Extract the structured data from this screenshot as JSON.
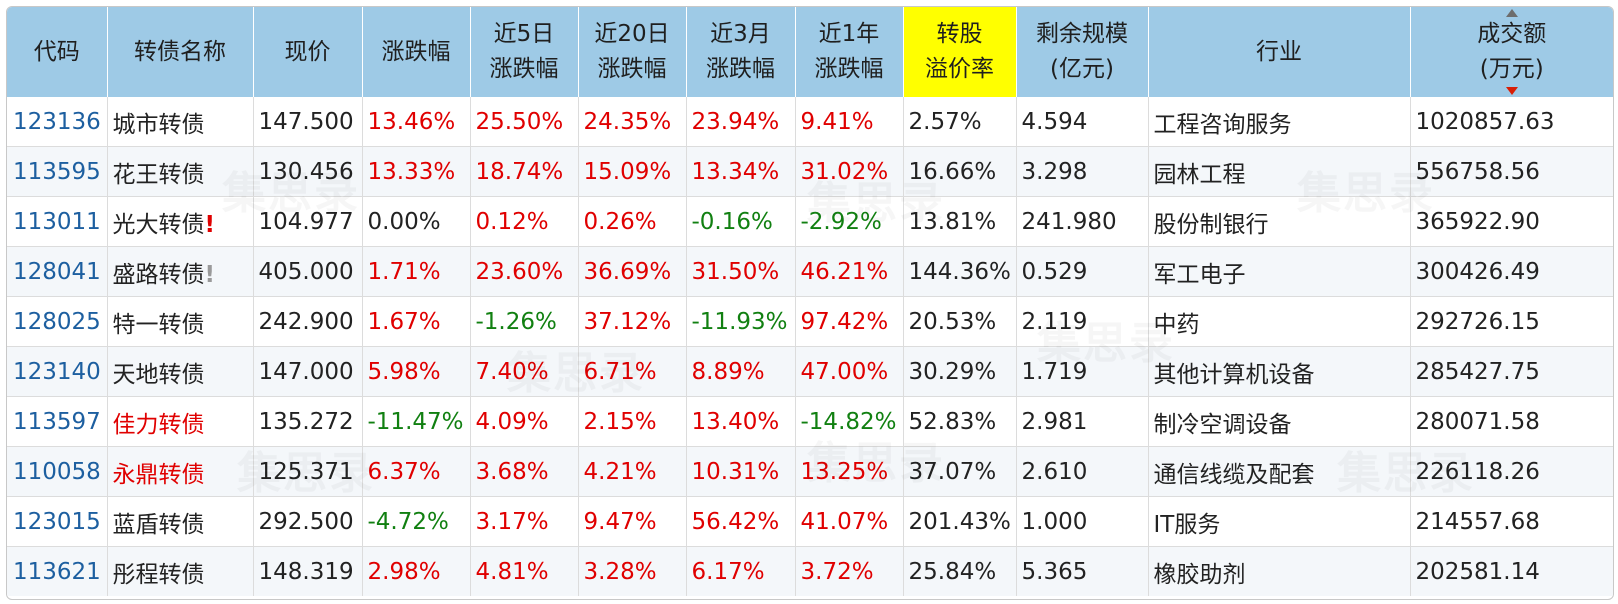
{
  "headers": [
    {
      "l1": "代码",
      "l2": ""
    },
    {
      "l1": "转债名称",
      "l2": ""
    },
    {
      "l1": "现价",
      "l2": ""
    },
    {
      "l1": "涨跌幅",
      "l2": ""
    },
    {
      "l1": "近5日",
      "l2": "涨跌幅"
    },
    {
      "l1": "近20日",
      "l2": "涨跌幅"
    },
    {
      "l1": "近3月",
      "l2": "涨跌幅"
    },
    {
      "l1": "近1年",
      "l2": "涨跌幅"
    },
    {
      "l1": "转股",
      "l2": "溢价率"
    },
    {
      "l1": "剩余规模",
      "l2": "(亿元)"
    },
    {
      "l1": "行业",
      "l2": ""
    },
    {
      "l1": "成交额",
      "l2": "(万元)"
    }
  ],
  "rows": [
    {
      "code": "123136",
      "name": "城市转债",
      "flag": "",
      "price": "147.500",
      "chg": "13.46%",
      "d5": "25.50%",
      "d20": "24.35%",
      "m3": "23.94%",
      "y1": "9.41%",
      "premium": "2.57%",
      "scale": "4.594",
      "industry": "工程咨询服务",
      "volume": "1020857.63"
    },
    {
      "code": "113595",
      "name": "花王转债",
      "flag": "",
      "price": "130.456",
      "chg": "13.33%",
      "d5": "18.74%",
      "d20": "15.09%",
      "m3": "13.34%",
      "y1": "31.02%",
      "premium": "16.66%",
      "scale": "3.298",
      "industry": "园林工程",
      "volume": "556758.56"
    },
    {
      "code": "113011",
      "name": "光大转债",
      "flag": "!",
      "price": "104.977",
      "chg": "0.00%",
      "d5": "0.12%",
      "d20": "0.26%",
      "m3": "-0.16%",
      "y1": "-2.92%",
      "premium": "13.81%",
      "scale": "241.980",
      "industry": "股份制银行",
      "volume": "365922.90"
    },
    {
      "code": "128041",
      "name": "盛路转债",
      "flag": "!",
      "price": "405.000",
      "chg": "1.71%",
      "d5": "23.60%",
      "d20": "36.69%",
      "m3": "31.50%",
      "y1": "46.21%",
      "premium": "144.36%",
      "scale": "0.529",
      "industry": "军工电子",
      "volume": "300426.49"
    },
    {
      "code": "128025",
      "name": "特一转债",
      "flag": "",
      "price": "242.900",
      "chg": "1.67%",
      "d5": "-1.26%",
      "d20": "37.12%",
      "m3": "-11.93%",
      "y1": "97.42%",
      "premium": "20.53%",
      "scale": "2.119",
      "industry": "中药",
      "volume": "292726.15"
    },
    {
      "code": "123140",
      "name": "天地转债",
      "flag": "",
      "price": "147.000",
      "chg": "5.98%",
      "d5": "7.40%",
      "d20": "6.71%",
      "m3": "8.89%",
      "y1": "47.00%",
      "premium": "30.29%",
      "scale": "1.719",
      "industry": "其他计算机设备",
      "volume": "285427.75"
    },
    {
      "code": "113597",
      "name": "佳力转债",
      "flag": "",
      "price": "135.272",
      "chg": "-11.47%",
      "d5": "4.09%",
      "d20": "2.15%",
      "m3": "13.40%",
      "y1": "-14.82%",
      "premium": "52.83%",
      "scale": "2.981",
      "industry": "制冷空调设备",
      "volume": "280071.58"
    },
    {
      "code": "110058",
      "name": "永鼎转债",
      "flag": "",
      "price": "125.371",
      "chg": "6.37%",
      "d5": "3.68%",
      "d20": "4.21%",
      "m3": "10.31%",
      "y1": "13.25%",
      "premium": "37.07%",
      "scale": "2.610",
      "industry": "通信线缆及配套",
      "volume": "226118.26"
    },
    {
      "code": "123015",
      "name": "蓝盾转债",
      "flag": "",
      "price": "292.500",
      "chg": "-4.72%",
      "d5": "3.17%",
      "d20": "9.47%",
      "m3": "56.42%",
      "y1": "41.07%",
      "premium": "201.43%",
      "scale": "1.000",
      "industry": "IT服务",
      "volume": "214557.68"
    },
    {
      "code": "113621",
      "name": "彤程转债",
      "flag": "",
      "price": "148.319",
      "chg": "2.98%",
      "d5": "4.81%",
      "d20": "3.28%",
      "m3": "6.17%",
      "y1": "3.72%",
      "premium": "25.84%",
      "scale": "5.365",
      "industry": "橡胶助剂",
      "volume": "202581.14"
    }
  ],
  "watermark": "集思录",
  "colors": {
    "header_bg": "#9ecae6",
    "highlight": "#ffff00",
    "up": "#e00000",
    "down": "#118011",
    "code": "#1d5fa0"
  }
}
